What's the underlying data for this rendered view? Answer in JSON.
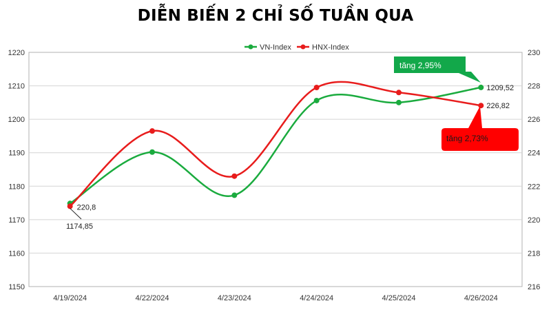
{
  "chart_data": {
    "type": "line",
    "title": "DIỄN BIẾN 2 CHỈ SỐ TUẦN QUA",
    "categories": [
      "4/19/2024",
      "4/22/2024",
      "4/23/2024",
      "4/24/2024",
      "4/25/2024",
      "4/26/2024"
    ],
    "series": [
      {
        "name": "VN-Index",
        "axis": "left",
        "color": "#1aab3e",
        "values": [
          1174.85,
          1190.2,
          1177.3,
          1205.6,
          1205.0,
          1209.52
        ]
      },
      {
        "name": "HNX-Index",
        "axis": "right",
        "color": "#e81c1c",
        "values": [
          220.8,
          225.3,
          222.6,
          227.9,
          227.6,
          226.82
        ]
      }
    ],
    "y_left": {
      "min": 1150,
      "max": 1220,
      "step": 10,
      "ticks": [
        "1150",
        "1160",
        "1170",
        "1180",
        "1190",
        "1200",
        "1210",
        "1220"
      ]
    },
    "y_right": {
      "min": 216,
      "max": 230,
      "step": 2,
      "ticks": [
        "216",
        "218",
        "220",
        "222",
        "224",
        "226",
        "228",
        "230"
      ]
    },
    "grid": "horizontal",
    "legend": "top-center",
    "data_labels": {
      "vn_start": "1174,85",
      "hnx_start": "220,8",
      "vn_end": "1209,52",
      "hnx_end": "226,82"
    },
    "callouts": {
      "vn": {
        "text": "tăng 2,95%",
        "color": "#12a84a"
      },
      "hnx": {
        "text": "tăng 2,73%",
        "color": "#ff0000"
      }
    }
  }
}
